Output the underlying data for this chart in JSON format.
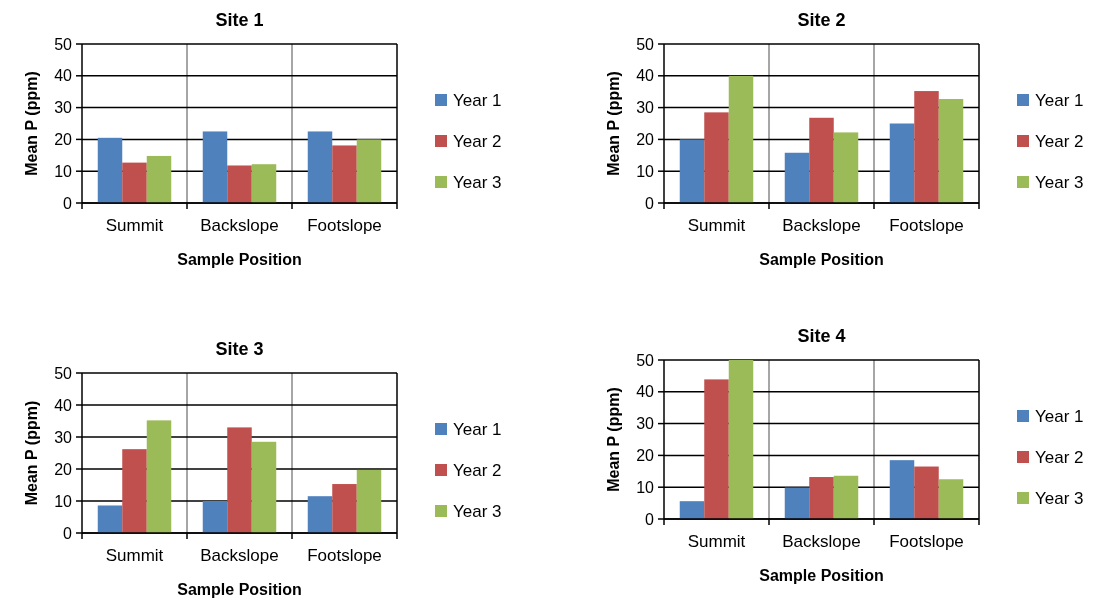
{
  "chart_data": [
    {
      "type": "bar",
      "title": "Site 1",
      "xlabel": "Sample Position",
      "ylabel": "Mean P (ppm)",
      "categories": [
        "Summit",
        "Backslope",
        "Footslope"
      ],
      "ylim": [
        0,
        50
      ],
      "yticks": [
        0,
        10,
        20,
        30,
        40,
        50
      ],
      "grid": true,
      "legend": "right",
      "series": [
        {
          "name": "Year 1",
          "color": "#4f81bd",
          "values": [
            20.5,
            22.5,
            22.5
          ]
        },
        {
          "name": "Year 2",
          "color": "#c0504d",
          "values": [
            12.7,
            11.8,
            18.1
          ]
        },
        {
          "name": "Year 3",
          "color": "#9bbb59",
          "values": [
            14.8,
            12.2,
            20
          ]
        }
      ]
    },
    {
      "type": "bar",
      "title": "Site 2",
      "xlabel": "Sample Position",
      "ylabel": "Mean P (ppm)",
      "categories": [
        "Summit",
        "Backslope",
        "Footslope"
      ],
      "ylim": [
        0,
        50
      ],
      "yticks": [
        0,
        10,
        20,
        30,
        40,
        50
      ],
      "grid": true,
      "legend": "right",
      "series": [
        {
          "name": "Year 1",
          "color": "#4f81bd",
          "values": [
            20,
            15.8,
            25
          ]
        },
        {
          "name": "Year 2",
          "color": "#c0504d",
          "values": [
            28.5,
            26.8,
            35.2
          ]
        },
        {
          "name": "Year 3",
          "color": "#9bbb59",
          "values": [
            40,
            22.2,
            32.7
          ]
        }
      ]
    },
    {
      "type": "bar",
      "title": "Site 3",
      "xlabel": "Sample Position",
      "ylabel": "Mean P (ppm)",
      "categories": [
        "Summit",
        "Backslope",
        "Footslope"
      ],
      "ylim": [
        0,
        50
      ],
      "yticks": [
        0,
        10,
        20,
        30,
        40,
        50
      ],
      "grid": true,
      "legend": "right",
      "series": [
        {
          "name": "Year 1",
          "color": "#4f81bd",
          "values": [
            8.6,
            10,
            11.5
          ]
        },
        {
          "name": "Year 2",
          "color": "#c0504d",
          "values": [
            26.2,
            33,
            15.3
          ]
        },
        {
          "name": "Year 3",
          "color": "#9bbb59",
          "values": [
            35.2,
            28.5,
            19.7
          ]
        }
      ]
    },
    {
      "type": "bar",
      "title": "Site 4",
      "xlabel": "Sample Position",
      "ylabel": "Mean P (ppm)",
      "categories": [
        "Summit",
        "Backslope",
        "Footslope"
      ],
      "ylim": [
        0,
        50
      ],
      "yticks": [
        0,
        10,
        20,
        30,
        40,
        50
      ],
      "grid": true,
      "legend": "right",
      "series": [
        {
          "name": "Year 1",
          "color": "#4f81bd",
          "values": [
            5.6,
            9.9,
            18.5
          ]
        },
        {
          "name": "Year 2",
          "color": "#c0504d",
          "values": [
            43.9,
            13.2,
            16.5
          ]
        },
        {
          "name": "Year 3",
          "color": "#9bbb59",
          "values": [
            50,
            13.6,
            12.5
          ]
        }
      ]
    }
  ]
}
